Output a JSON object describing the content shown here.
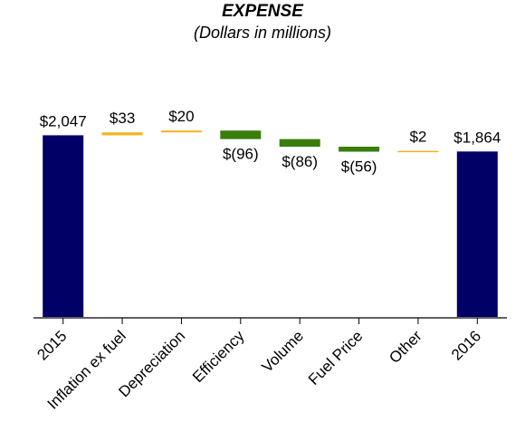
{
  "chart_data": {
    "type": "bar",
    "subtype": "waterfall",
    "title": "EXPENSE",
    "subtitle": "(Dollars in millions)",
    "xlabel": "",
    "ylabel": "",
    "grid": false,
    "legend": "none",
    "ylim": [
      0,
      2150
    ],
    "categories": [
      "2015",
      "Inflation ex fuel",
      "Depreciation",
      "Efficiency",
      "Volume",
      "Fuel Price",
      "Other",
      "2016"
    ],
    "values": [
      2047,
      33,
      20,
      -96,
      -86,
      -56,
      2,
      1864
    ],
    "kinds": [
      "total",
      "delta",
      "delta",
      "delta",
      "delta",
      "delta",
      "delta",
      "total"
    ],
    "data_labels": [
      "$2,047",
      "$33",
      "$20",
      "$(96)",
      "$(86)",
      "$(56)",
      "$2",
      "$1,864"
    ],
    "colors": {
      "total": "#000066",
      "increase": "#f5b21f",
      "decrease": "#3a7d0a",
      "axis": "#000000"
    }
  }
}
